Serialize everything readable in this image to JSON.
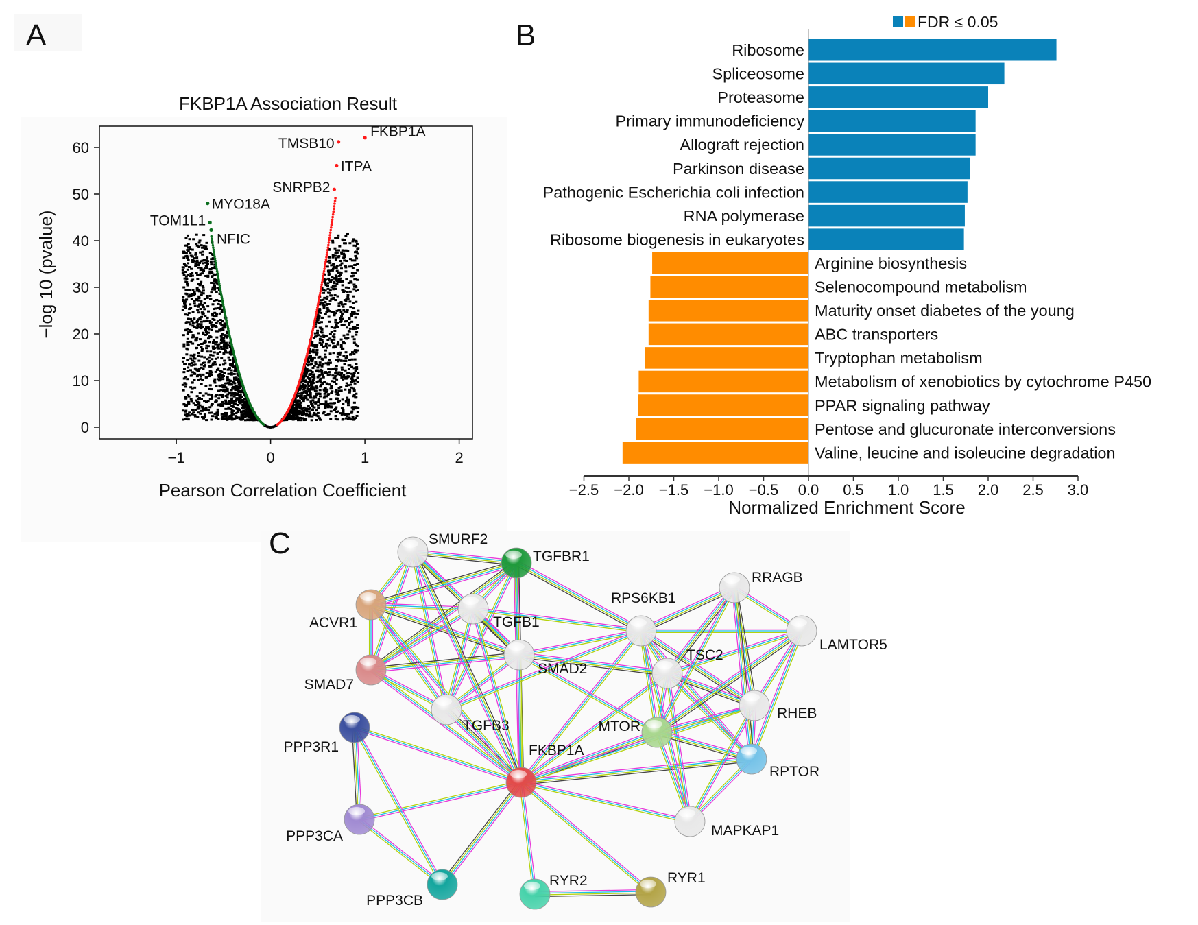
{
  "panels": {
    "a": "A",
    "b": "B",
    "c": "C"
  },
  "chart_data": [
    {
      "type": "scatter",
      "panel": "A",
      "title": "FKBP1A Association Result",
      "xlabel": "Pearson Correlation Coefficient",
      "ylabel": "−log 10 (pvalue)",
      "xlim": [
        -1.82,
        2.14
      ],
      "ylim": [
        -2.5,
        64.6
      ],
      "xticks": [
        -1,
        0,
        1,
        2
      ],
      "xtick_labels": [
        "−1",
        "0",
        "1",
        "2"
      ],
      "yticks": [
        0,
        10,
        20,
        30,
        40,
        50,
        60
      ],
      "ytick_labels": [
        "0",
        "10",
        "20",
        "30",
        "40",
        "50",
        "60"
      ],
      "colors": {
        "background_points": "#000000",
        "positive": "#ff1a1a",
        "negative": "#0a6e1e"
      },
      "highlighted": [
        {
          "gene": "FKBP1A",
          "x": 1.0,
          "y": 62.1,
          "direction": "positive"
        },
        {
          "gene": "TMSB10",
          "x": 0.72,
          "y": 61.2,
          "direction": "positive"
        },
        {
          "gene": "ITPA",
          "x": 0.7,
          "y": 56.1,
          "direction": "positive"
        },
        {
          "gene": "SNRPB2",
          "x": 0.675,
          "y": 51.0,
          "direction": "positive"
        },
        {
          "gene": "MYO18A",
          "x": -0.668,
          "y": 48.0,
          "direction": "negative"
        },
        {
          "gene": "TOM1L1",
          "x": -0.643,
          "y": 43.9,
          "direction": "negative"
        },
        {
          "gene": "NFIC",
          "x": -0.63,
          "y": 42.3,
          "direction": "negative"
        }
      ],
      "curve_coefficient": 104
    },
    {
      "type": "bar",
      "panel": "B",
      "orientation": "horizontal",
      "xlabel": "Normalized Enrichment Score",
      "xlim": [
        -2.5,
        3.0
      ],
      "xticks": [
        -2.5,
        -2.0,
        -1.5,
        -1.0,
        -0.5,
        0.0,
        0.5,
        1.0,
        1.5,
        2.0,
        2.5,
        3.0
      ],
      "xtick_labels": [
        "−2.5",
        "−2.0",
        "−1.5",
        "−1.0",
        "−0.5",
        "0.0",
        "0.5",
        "1.0",
        "1.5",
        "2.0",
        "2.5",
        "3.0"
      ],
      "legend": {
        "label": "FDR ≤ 0.05",
        "position": "top"
      },
      "colors": {
        "positive": "#0a82b9",
        "negative": "#ff8c00"
      },
      "categories": [
        "Ribosome",
        "Spliceosome",
        "Proteasome",
        "Primary immunodeficiency",
        "Allograft rejection",
        "Parkinson disease",
        "Pathogenic Escherichia coli infection",
        "RNA polymerase",
        "Ribosome biogenesis in eukaryotes",
        "Arginine biosynthesis",
        "Selenocompound metabolism",
        "Maturity onset diabetes of the young",
        "ABC transporters",
        "Tryptophan metabolism",
        "Metabolism of xenobiotics by cytochrome P450",
        "PPAR signaling pathway",
        "Pentose and glucuronate interconversions",
        "Valine, leucine and isoleucine degradation"
      ],
      "values": [
        2.76,
        2.18,
        2.0,
        1.86,
        1.86,
        1.8,
        1.77,
        1.74,
        1.73,
        -1.74,
        -1.76,
        -1.78,
        -1.78,
        -1.82,
        -1.89,
        -1.9,
        -1.92,
        -2.07
      ]
    }
  ],
  "network": {
    "edge_colors": [
      "#e83ad9",
      "#1cc0e6",
      "#b5d20c",
      "#444444",
      "#7070ff"
    ],
    "nodes": [
      {
        "id": "SMURF2",
        "color": "#e8e8e8"
      },
      {
        "id": "TGFBR1",
        "color": "#1f9a3c"
      },
      {
        "id": "ACVR1",
        "color": "#d8a57c"
      },
      {
        "id": "TGFB1",
        "color": "#e8e8e8"
      },
      {
        "id": "SMAD2",
        "color": "#e8e8e8"
      },
      {
        "id": "SMAD7",
        "color": "#d98a8a"
      },
      {
        "id": "TGFB3",
        "color": "#e8e8e8"
      },
      {
        "id": "PPP3R1",
        "color": "#3b4f9e"
      },
      {
        "id": "FKBP1A",
        "color": "#e24a4a"
      },
      {
        "id": "PPP3CA",
        "color": "#a08ad2"
      },
      {
        "id": "PPP3CB",
        "color": "#14a69e"
      },
      {
        "id": "RYR2",
        "color": "#46d2aa"
      },
      {
        "id": "RYR1",
        "color": "#b3a447"
      },
      {
        "id": "RPS6KB1",
        "color": "#e8e8e8"
      },
      {
        "id": "TSC2",
        "color": "#e8e8e8"
      },
      {
        "id": "MTOR",
        "color": "#a9d78f"
      },
      {
        "id": "RRAGB",
        "color": "#e8e8e8"
      },
      {
        "id": "LAMTOR5",
        "color": "#e8e8e8"
      },
      {
        "id": "RHEB",
        "color": "#e8e8e8"
      },
      {
        "id": "RPTOR",
        "color": "#74c2e8"
      },
      {
        "id": "MAPKAP1",
        "color": "#e8e8e8"
      }
    ],
    "edges": [
      [
        "SMURF2",
        "TGFBR1"
      ],
      [
        "SMURF2",
        "ACVR1"
      ],
      [
        "SMURF2",
        "TGFB1"
      ],
      [
        "SMURF2",
        "SMAD2"
      ],
      [
        "SMURF2",
        "SMAD7"
      ],
      [
        "SMURF2",
        "TGFB3"
      ],
      [
        "TGFBR1",
        "ACVR1"
      ],
      [
        "TGFBR1",
        "TGFB1"
      ],
      [
        "TGFBR1",
        "SMAD2"
      ],
      [
        "TGFBR1",
        "SMAD7"
      ],
      [
        "TGFBR1",
        "TGFB3"
      ],
      [
        "ACVR1",
        "TGFB1"
      ],
      [
        "ACVR1",
        "SMAD2"
      ],
      [
        "ACVR1",
        "SMAD7"
      ],
      [
        "ACVR1",
        "TGFB3"
      ],
      [
        "TGFB1",
        "SMAD2"
      ],
      [
        "TGFB1",
        "SMAD7"
      ],
      [
        "TGFB1",
        "TGFB3"
      ],
      [
        "SMAD2",
        "SMAD7"
      ],
      [
        "SMAD2",
        "TGFB3"
      ],
      [
        "SMAD7",
        "TGFB3"
      ],
      [
        "FKBP1A",
        "TGFBR1"
      ],
      [
        "FKBP1A",
        "TGFB1"
      ],
      [
        "FKBP1A",
        "SMAD2"
      ],
      [
        "FKBP1A",
        "TGFB3"
      ],
      [
        "FKBP1A",
        "ACVR1"
      ],
      [
        "FKBP1A",
        "SMAD7"
      ],
      [
        "FKBP1A",
        "SMURF2"
      ],
      [
        "FKBP1A",
        "PPP3R1"
      ],
      [
        "FKBP1A",
        "PPP3CA"
      ],
      [
        "FKBP1A",
        "PPP3CB"
      ],
      [
        "FKBP1A",
        "RYR2"
      ],
      [
        "FKBP1A",
        "RYR1"
      ],
      [
        "FKBP1A",
        "MTOR"
      ],
      [
        "FKBP1A",
        "RPS6KB1"
      ],
      [
        "FKBP1A",
        "TSC2"
      ],
      [
        "FKBP1A",
        "RPTOR"
      ],
      [
        "FKBP1A",
        "MAPKAP1"
      ],
      [
        "FKBP1A",
        "RHEB"
      ],
      [
        "PPP3R1",
        "PPP3CA"
      ],
      [
        "PPP3R1",
        "PPP3CB"
      ],
      [
        "PPP3CA",
        "PPP3CB"
      ],
      [
        "RYR2",
        "RYR1"
      ],
      [
        "RPS6KB1",
        "TSC2"
      ],
      [
        "RPS6KB1",
        "MTOR"
      ],
      [
        "RPS6KB1",
        "RHEB"
      ],
      [
        "RPS6KB1",
        "RPTOR"
      ],
      [
        "RPS6KB1",
        "MAPKAP1"
      ],
      [
        "RPS6KB1",
        "RRAGB"
      ],
      [
        "RPS6KB1",
        "LAMTOR5"
      ],
      [
        "TSC2",
        "MTOR"
      ],
      [
        "TSC2",
        "RHEB"
      ],
      [
        "TSC2",
        "RPTOR"
      ],
      [
        "TSC2",
        "MAPKAP1"
      ],
      [
        "TSC2",
        "RRAGB"
      ],
      [
        "TSC2",
        "LAMTOR5"
      ],
      [
        "MTOR",
        "RHEB"
      ],
      [
        "MTOR",
        "RPTOR"
      ],
      [
        "MTOR",
        "MAPKAP1"
      ],
      [
        "MTOR",
        "RRAGB"
      ],
      [
        "MTOR",
        "LAMTOR5"
      ],
      [
        "RHEB",
        "RPTOR"
      ],
      [
        "RHEB",
        "MAPKAP1"
      ],
      [
        "RHEB",
        "RRAGB"
      ],
      [
        "RHEB",
        "LAMTOR5"
      ],
      [
        "RPTOR",
        "MAPKAP1"
      ],
      [
        "RPTOR",
        "RRAGB"
      ],
      [
        "RPTOR",
        "LAMTOR5"
      ],
      [
        "RRAGB",
        "LAMTOR5"
      ],
      [
        "TGFBR1",
        "RPS6KB1"
      ],
      [
        "TGFB1",
        "RPS6KB1"
      ],
      [
        "SMAD2",
        "RPS6KB1"
      ],
      [
        "SMAD2",
        "TSC2"
      ],
      [
        "SMAD2",
        "MTOR"
      ],
      [
        "TGFB3",
        "RPS6KB1"
      ]
    ]
  }
}
